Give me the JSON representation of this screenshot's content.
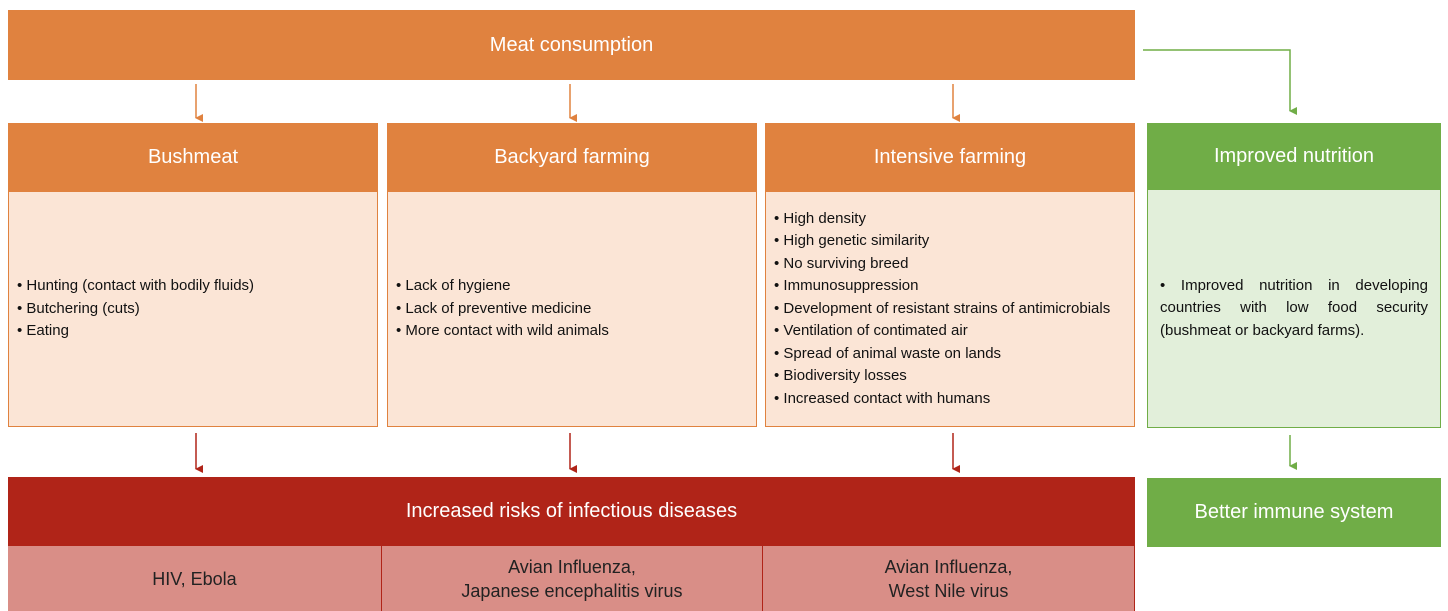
{
  "top": {
    "title": "Meat consumption"
  },
  "columns": [
    {
      "title": "Bushmeat",
      "items": [
        "• Hunting (contact with bodily fluids)",
        "• Butchering (cuts)",
        "• Eating"
      ]
    },
    {
      "title": "Backyard farming",
      "items": [
        "• Lack of hygiene",
        "• Lack of preventive medicine",
        "• More contact with wild animals"
      ]
    },
    {
      "title": "Intensive farming",
      "items": [
        "• High density",
        "• High genetic similarity",
        "• No surviving breed",
        "• Immunosuppression",
        "• Development of resistant strains of antimicrobials",
        "• Ventilation of contimated air",
        "• Spread of animal waste on lands",
        "• Biodiversity losses",
        "• Increased contact with humans"
      ]
    }
  ],
  "nutrition": {
    "title": "Improved nutrition",
    "text": "• Improved nutrition in developing countries with low food security (bushmeat or backyard farms)."
  },
  "risks": {
    "title": "Increased risks of infectious diseases",
    "diseases": [
      [
        "HIV, Ebola"
      ],
      [
        "Avian Influenza,",
        "Japanese encephalitis virus"
      ],
      [
        "Avian Influenza,",
        "West Nile virus"
      ]
    ]
  },
  "immune": {
    "title": "Better immune system"
  }
}
